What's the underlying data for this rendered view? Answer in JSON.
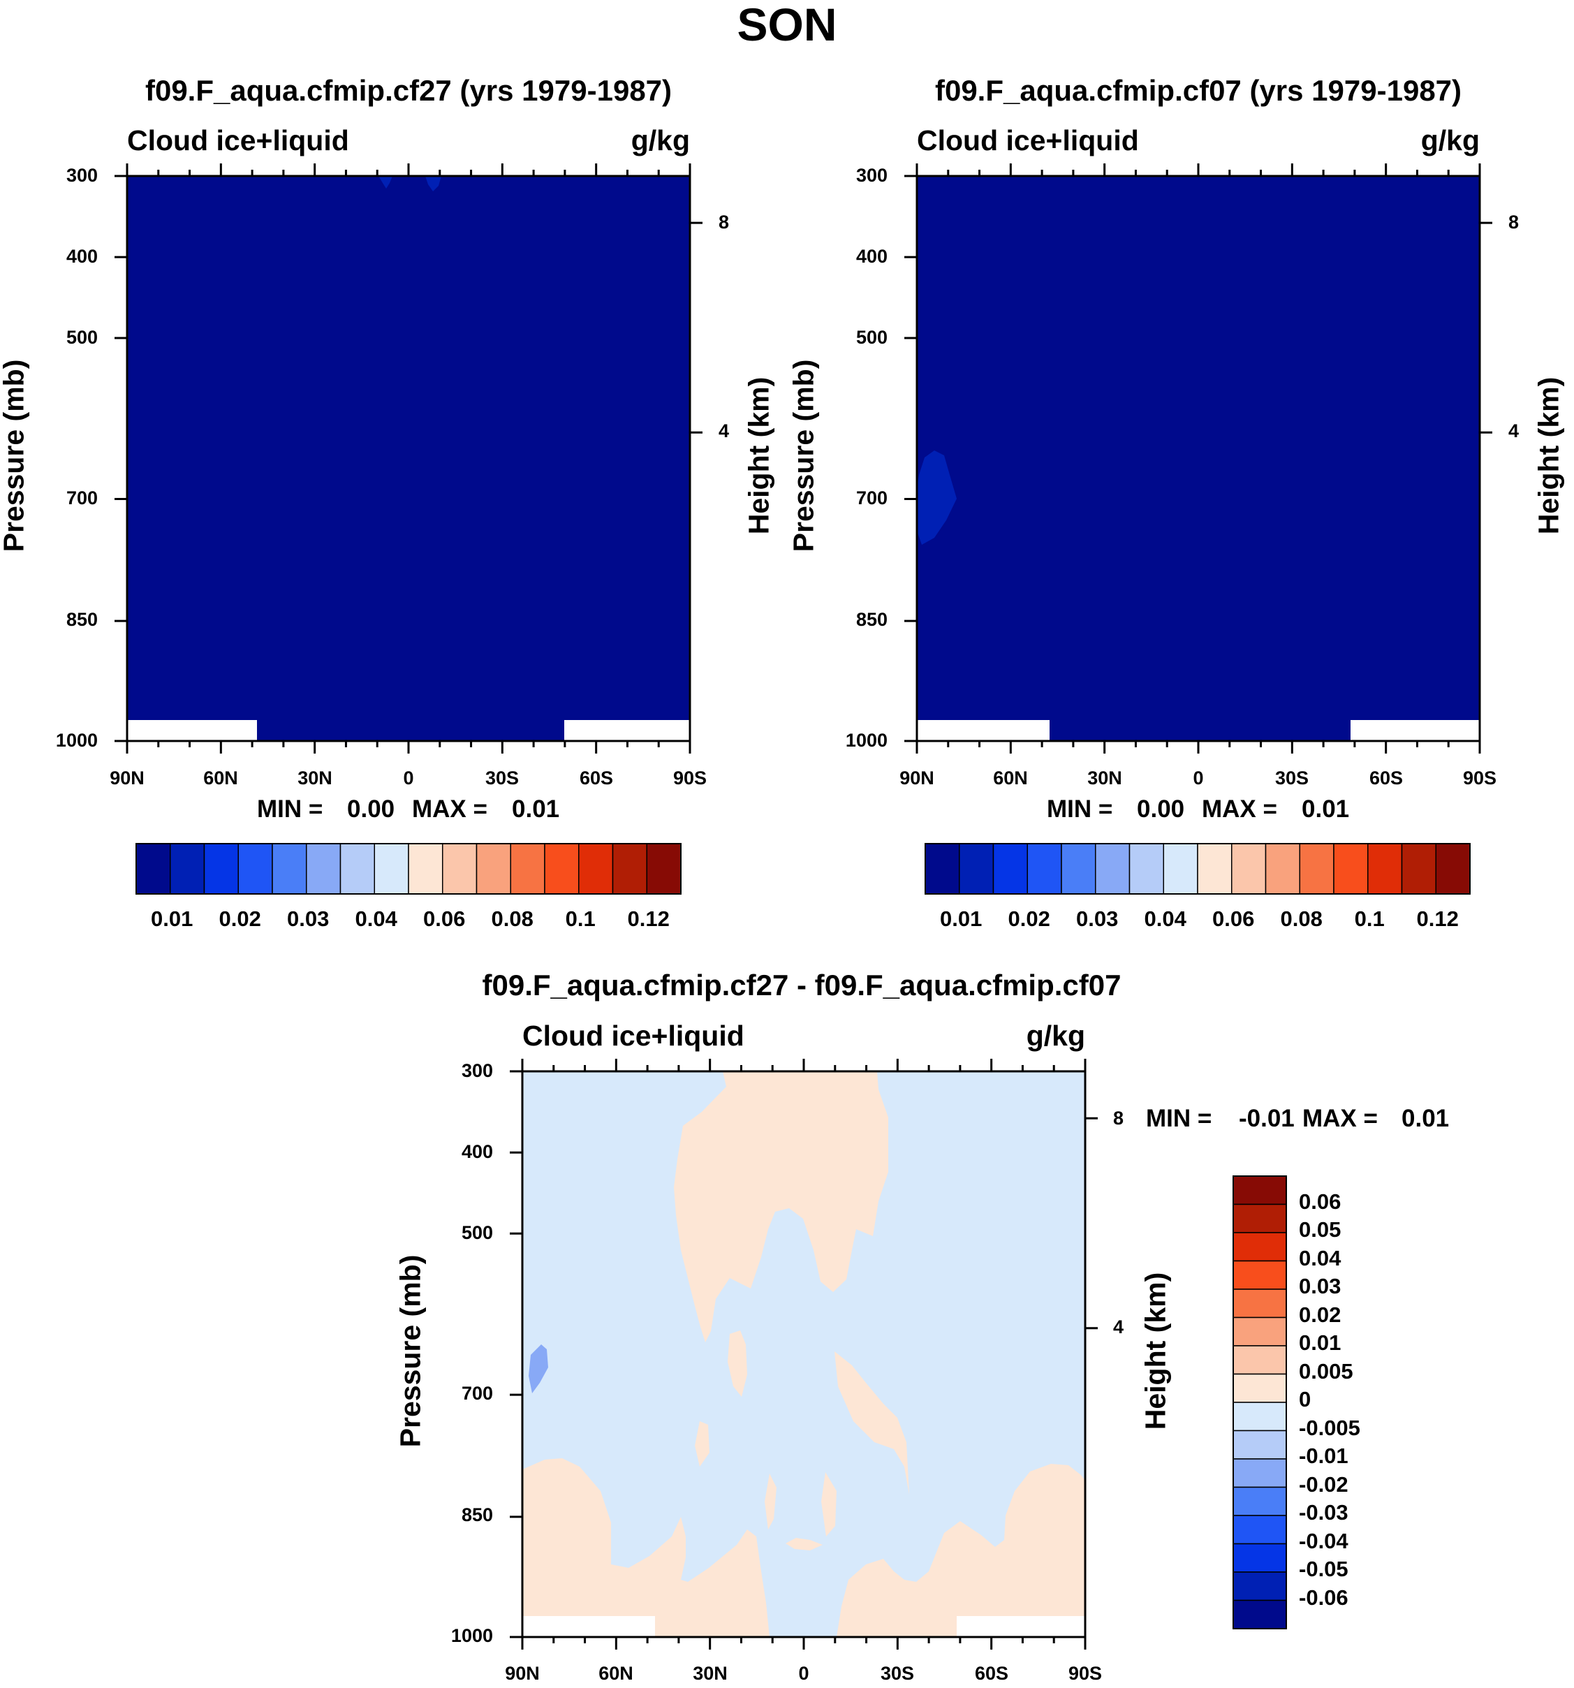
{
  "main_title": "SON",
  "colors": {
    "hovmoller_colormap": [
      "#000a8c",
      "#0020b4",
      "#0535e6",
      "#1f55f5",
      "#4a7ef7",
      "#88a9f6",
      "#b5ccf8",
      "#d7e9fb",
      "#fde6d5",
      "#fbc6ab",
      "#f9a27d",
      "#f77343",
      "#f84e1c",
      "#e02d07",
      "#b01e05",
      "#870b05"
    ],
    "frame": "#000000",
    "mask": "#ffffff"
  },
  "chart_data": [
    {
      "type": "heatmap",
      "title": "f09.F_aqua.cfmip.cf27 (yrs 1979-1987)",
      "left_string": "Cloud ice+liquid",
      "right_string": "g/kg",
      "xlabel": "",
      "ylabel": "Pressure (mb)",
      "y2label": "Height (km)",
      "x_ticks": [
        "90N",
        "60N",
        "30N",
        "0",
        "30S",
        "60S",
        "90S"
      ],
      "y_ticks": [
        "300",
        "400",
        "500",
        "700",
        "850",
        "1000"
      ],
      "y2_ticks": [
        "8",
        "4"
      ],
      "ylim": [
        1000,
        300
      ],
      "min_label": "MIN =",
      "min_value": "0.00",
      "max_label": "MAX =",
      "max_value": "0.01",
      "background_level": 0,
      "colorbar_labels": [
        "0.01",
        "0.02",
        "0.03",
        "0.04",
        "0.06",
        "0.08",
        "0.1",
        "0.12"
      ],
      "features": [
        {
          "level": 1,
          "lat": -8,
          "pressure": 305
        },
        {
          "level": 1,
          "lat": 8,
          "pressure": 305
        }
      ]
    },
    {
      "type": "heatmap",
      "title": "f09.F_aqua.cfmip.cf07 (yrs 1979-1987)",
      "left_string": "Cloud ice+liquid",
      "right_string": "g/kg",
      "xlabel": "",
      "ylabel": "Pressure (mb)",
      "y2label": "Height (km)",
      "x_ticks": [
        "90N",
        "60N",
        "30N",
        "0",
        "30S",
        "60S",
        "90S"
      ],
      "y_ticks": [
        "300",
        "400",
        "500",
        "700",
        "850",
        "1000"
      ],
      "y2_ticks": [
        "8",
        "4"
      ],
      "ylim": [
        1000,
        300
      ],
      "min_label": "MIN =",
      "min_value": "0.00",
      "max_label": "MAX =",
      "max_value": "0.01",
      "background_level": 0,
      "colorbar_labels": [
        "0.01",
        "0.02",
        "0.03",
        "0.04",
        "0.06",
        "0.08",
        "0.1",
        "0.12"
      ],
      "features": [
        {
          "level": 1,
          "lat": 85,
          "pressure": 700
        }
      ]
    },
    {
      "type": "heatmap",
      "title": "f09.F_aqua.cfmip.cf27 - f09.F_aqua.cfmip.cf07",
      "left_string": "Cloud ice+liquid",
      "right_string": "g/kg",
      "xlabel": "",
      "ylabel": "Pressure (mb)",
      "y2label": "Height (km)",
      "x_ticks": [
        "90N",
        "60N",
        "30N",
        "0",
        "30S",
        "60S",
        "90S"
      ],
      "y_ticks": [
        "300",
        "400",
        "500",
        "700",
        "850",
        "1000"
      ],
      "y2_ticks": [
        "8",
        "4"
      ],
      "ylim": [
        1000,
        300
      ],
      "min_label": "MIN =",
      "min_value": "-0.01",
      "max_label": "MAX =",
      "max_value": "0.01",
      "background_level": 7,
      "positive_level": 8,
      "colorbar_labels": [
        "0.06",
        "0.05",
        "0.04",
        "0.03",
        "0.02",
        "0.01",
        "0.005",
        "0",
        "-0.005",
        "-0.01",
        "-0.02",
        "-0.03",
        "-0.04",
        "-0.05",
        "-0.06"
      ]
    }
  ]
}
